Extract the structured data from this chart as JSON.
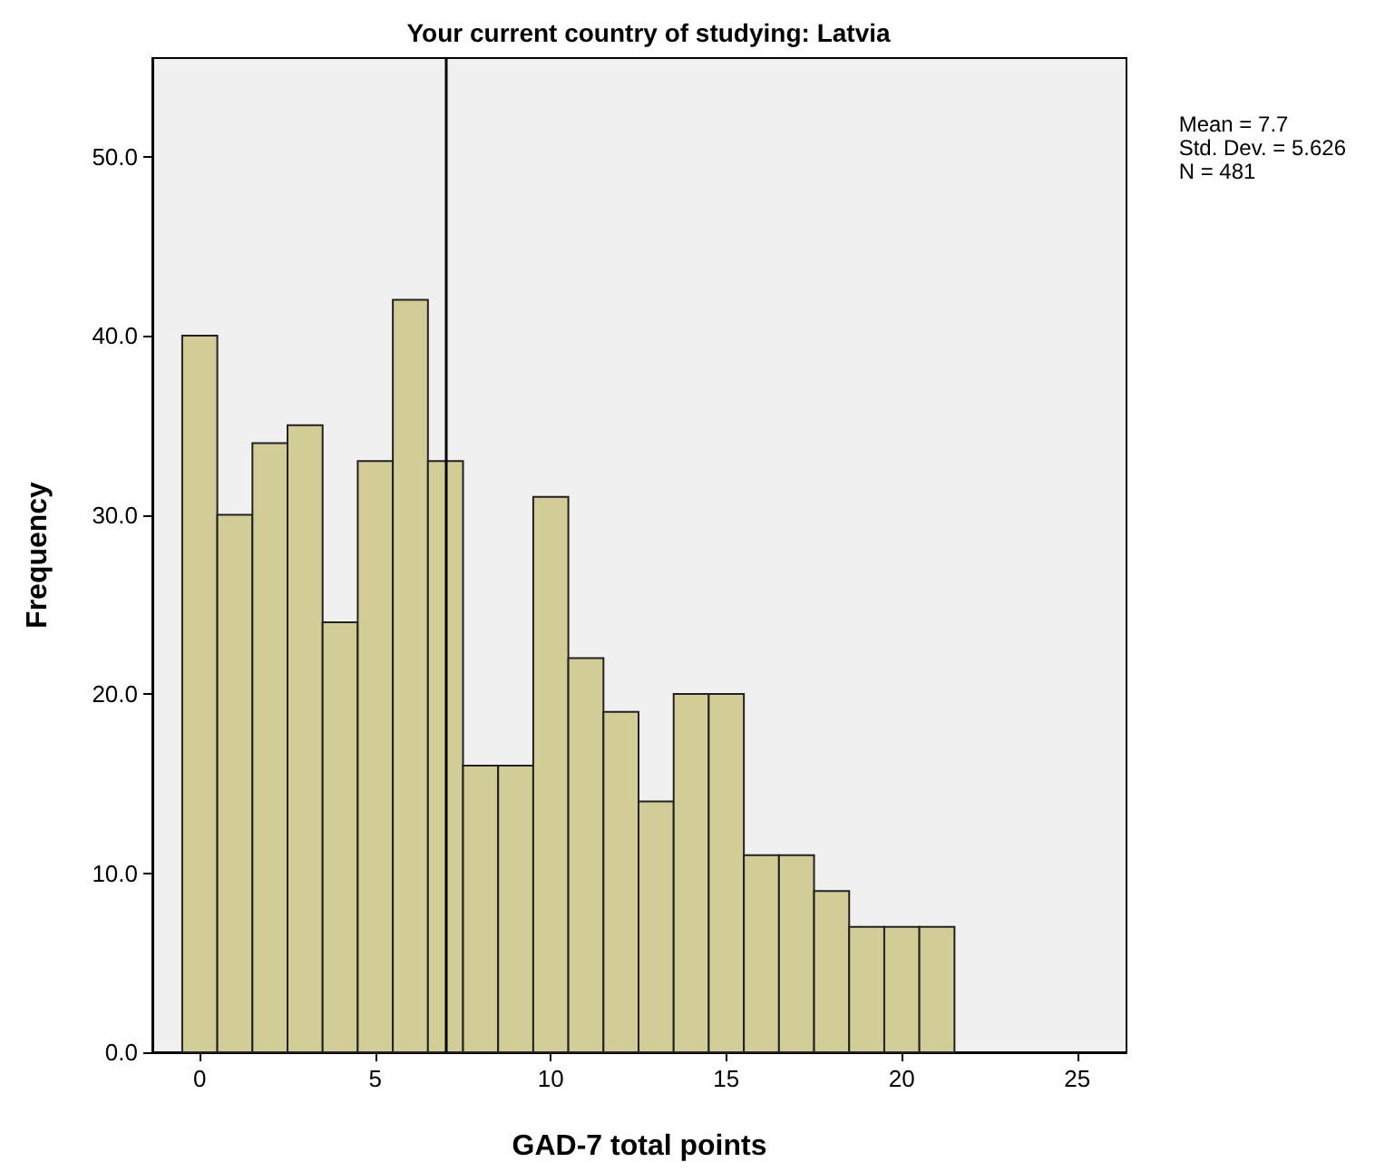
{
  "chart_data": {
    "type": "histogram",
    "title": "Your current country of studying: Latvia",
    "xlabel": "GAD-7 total points",
    "ylabel": "Frequency",
    "bins": [
      -0.5,
      0.5,
      1.5,
      2.5,
      3.5,
      4.5,
      5.5,
      6.5,
      7.5,
      8.5,
      9.5,
      10.5,
      11.5,
      12.5,
      13.5,
      14.5,
      15.5,
      16.5,
      17.5,
      18.5,
      19.5,
      20.5,
      21.5
    ],
    "values": [
      40,
      30,
      34,
      35,
      24,
      33,
      42,
      33,
      16,
      16,
      31,
      22,
      19,
      14,
      20,
      20,
      11,
      11,
      9,
      7,
      7,
      7
    ],
    "color": "#d2cd96",
    "xlim": [
      -1.35,
      26.4
    ],
    "xticks": [
      0,
      5,
      10,
      15,
      20,
      25
    ],
    "ylim": [
      0,
      55.5
    ],
    "yticks": [
      {
        "value": 0,
        "label": "0.0"
      },
      {
        "value": 10,
        "label": "10.0"
      },
      {
        "value": 20,
        "label": "20.0"
      },
      {
        "value": 30,
        "label": "30.0"
      },
      {
        "value": 40,
        "label": "40.0"
      },
      {
        "value": 50,
        "label": "50.0"
      }
    ],
    "ref_lines": [
      {
        "axis": "x",
        "value": 7,
        "label": null,
        "color": "#000000"
      }
    ],
    "annotations": [
      "Mean = 7.7\nStd. Dev. = 5.626\nN = 481"
    ],
    "grid": false
  }
}
